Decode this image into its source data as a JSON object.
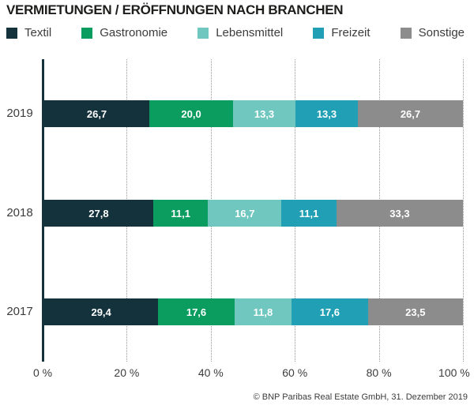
{
  "title": "VERMIETUNGEN / ERÖFFNUNGEN NACH BRANCHEN",
  "legend": {
    "items": [
      {
        "label": "Textil",
        "color": "#13323c"
      },
      {
        "label": "Gastronomie",
        "color": "#0a9d5f"
      },
      {
        "label": "Lebensmittel",
        "color": "#6fc7bf"
      },
      {
        "label": "Freizeit",
        "color": "#219fb4"
      },
      {
        "label": "Sonstige",
        "color": "#8c8c8c"
      }
    ]
  },
  "chart_data": {
    "type": "bar",
    "stacked": true,
    "orientation": "horizontal",
    "title": "VERMIETUNGEN / ERÖFFNUNGEN NACH BRANCHEN",
    "categories": [
      "2019",
      "2018",
      "2017"
    ],
    "series": [
      {
        "name": "Textil",
        "color": "#13323c",
        "values": [
          26.7,
          27.8,
          29.4
        ]
      },
      {
        "name": "Gastronomie",
        "color": "#0a9d5f",
        "values": [
          20.0,
          11.1,
          17.6
        ]
      },
      {
        "name": "Lebensmittel",
        "color": "#6fc7bf",
        "values": [
          13.3,
          16.7,
          11.8
        ]
      },
      {
        "name": "Freizeit",
        "color": "#219fb4",
        "values": [
          13.3,
          11.1,
          17.6
        ]
      },
      {
        "name": "Sonstige",
        "color": "#8c8c8c",
        "values": [
          26.7,
          33.3,
          23.5
        ]
      }
    ],
    "value_labels": [
      [
        "26,7",
        "20,0",
        "13,3",
        "13,3",
        "26,7"
      ],
      [
        "27,8",
        "11,1",
        "16,7",
        "11,1",
        "33,3"
      ],
      [
        "29,4",
        "17,6",
        "11,8",
        "17,6",
        "23,5"
      ]
    ],
    "x_ticks": [
      "0 %",
      "20 %",
      "40 %",
      "60 %",
      "80 %",
      "100 %"
    ],
    "xlim": [
      0,
      100
    ],
    "xlabel": "",
    "ylabel": "",
    "grid": "dotted-vertical",
    "legend_position": "top",
    "unit": "percent"
  },
  "footer": {
    "copyright": "© BNP Paribas Real Estate GmbH, 31. Dezember 2019"
  }
}
